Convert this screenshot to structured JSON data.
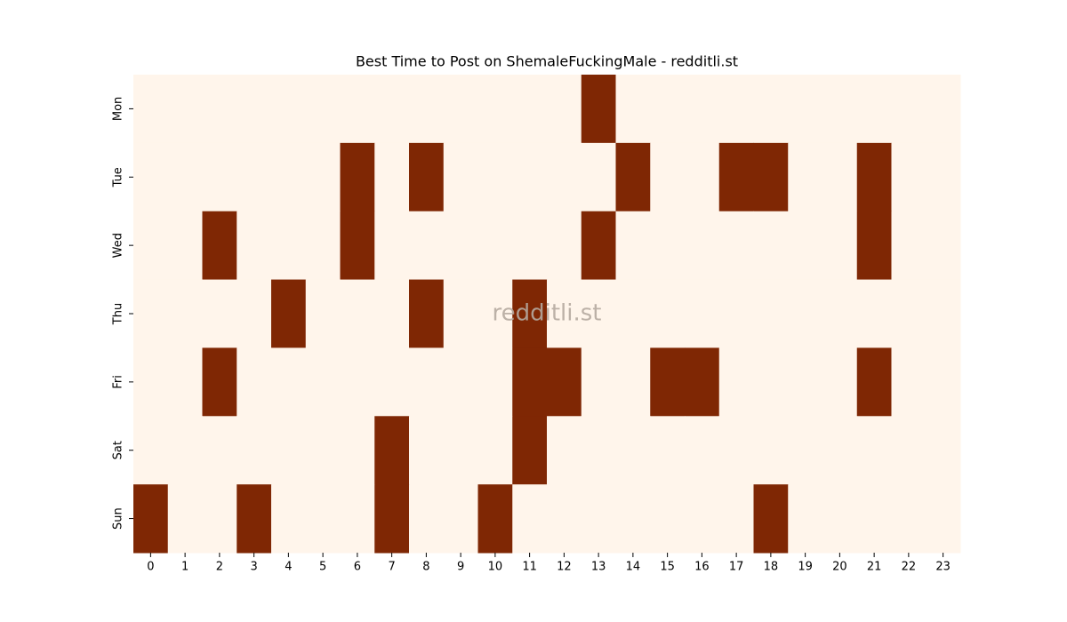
{
  "chart_data": {
    "type": "heatmap",
    "title": "Best Time to Post on ShemaleFuckingMale - redditli.st",
    "watermark": "redditli.st",
    "x": [
      0,
      1,
      2,
      3,
      4,
      5,
      6,
      7,
      8,
      9,
      10,
      11,
      12,
      13,
      14,
      15,
      16,
      17,
      18,
      19,
      20,
      21,
      22,
      23
    ],
    "y": [
      "Mon",
      "Tue",
      "Wed",
      "Thu",
      "Fri",
      "Sat",
      "Sun"
    ],
    "colormap": [
      "#fff5eb",
      "#7f2704"
    ],
    "values": [
      [
        0,
        0,
        0,
        0,
        0,
        0,
        0,
        0,
        0,
        0,
        0,
        0,
        0,
        1,
        0,
        0,
        0,
        0,
        0,
        0,
        0,
        0,
        0,
        0
      ],
      [
        0,
        0,
        0,
        0,
        0,
        0,
        1,
        0,
        1,
        0,
        0,
        0,
        0,
        0,
        1,
        0,
        0,
        1,
        1,
        0,
        0,
        1,
        0,
        0
      ],
      [
        0,
        0,
        1,
        0,
        0,
        0,
        1,
        0,
        0,
        0,
        0,
        0,
        0,
        1,
        0,
        0,
        0,
        0,
        0,
        0,
        0,
        1,
        0,
        0
      ],
      [
        0,
        0,
        0,
        0,
        1,
        0,
        0,
        0,
        1,
        0,
        0,
        1,
        0,
        0,
        0,
        0,
        0,
        0,
        0,
        0,
        0,
        0,
        0,
        0
      ],
      [
        0,
        0,
        1,
        0,
        0,
        0,
        0,
        0,
        0,
        0,
        0,
        1,
        1,
        0,
        0,
        1,
        1,
        0,
        0,
        0,
        0,
        1,
        0,
        0
      ],
      [
        0,
        0,
        0,
        0,
        0,
        0,
        0,
        1,
        0,
        0,
        0,
        1,
        0,
        0,
        0,
        0,
        0,
        0,
        0,
        0,
        0,
        0,
        0,
        0
      ],
      [
        1,
        0,
        0,
        1,
        0,
        0,
        0,
        1,
        0,
        0,
        1,
        0,
        0,
        0,
        0,
        0,
        0,
        0,
        1,
        0,
        0,
        0,
        0,
        0
      ]
    ]
  }
}
